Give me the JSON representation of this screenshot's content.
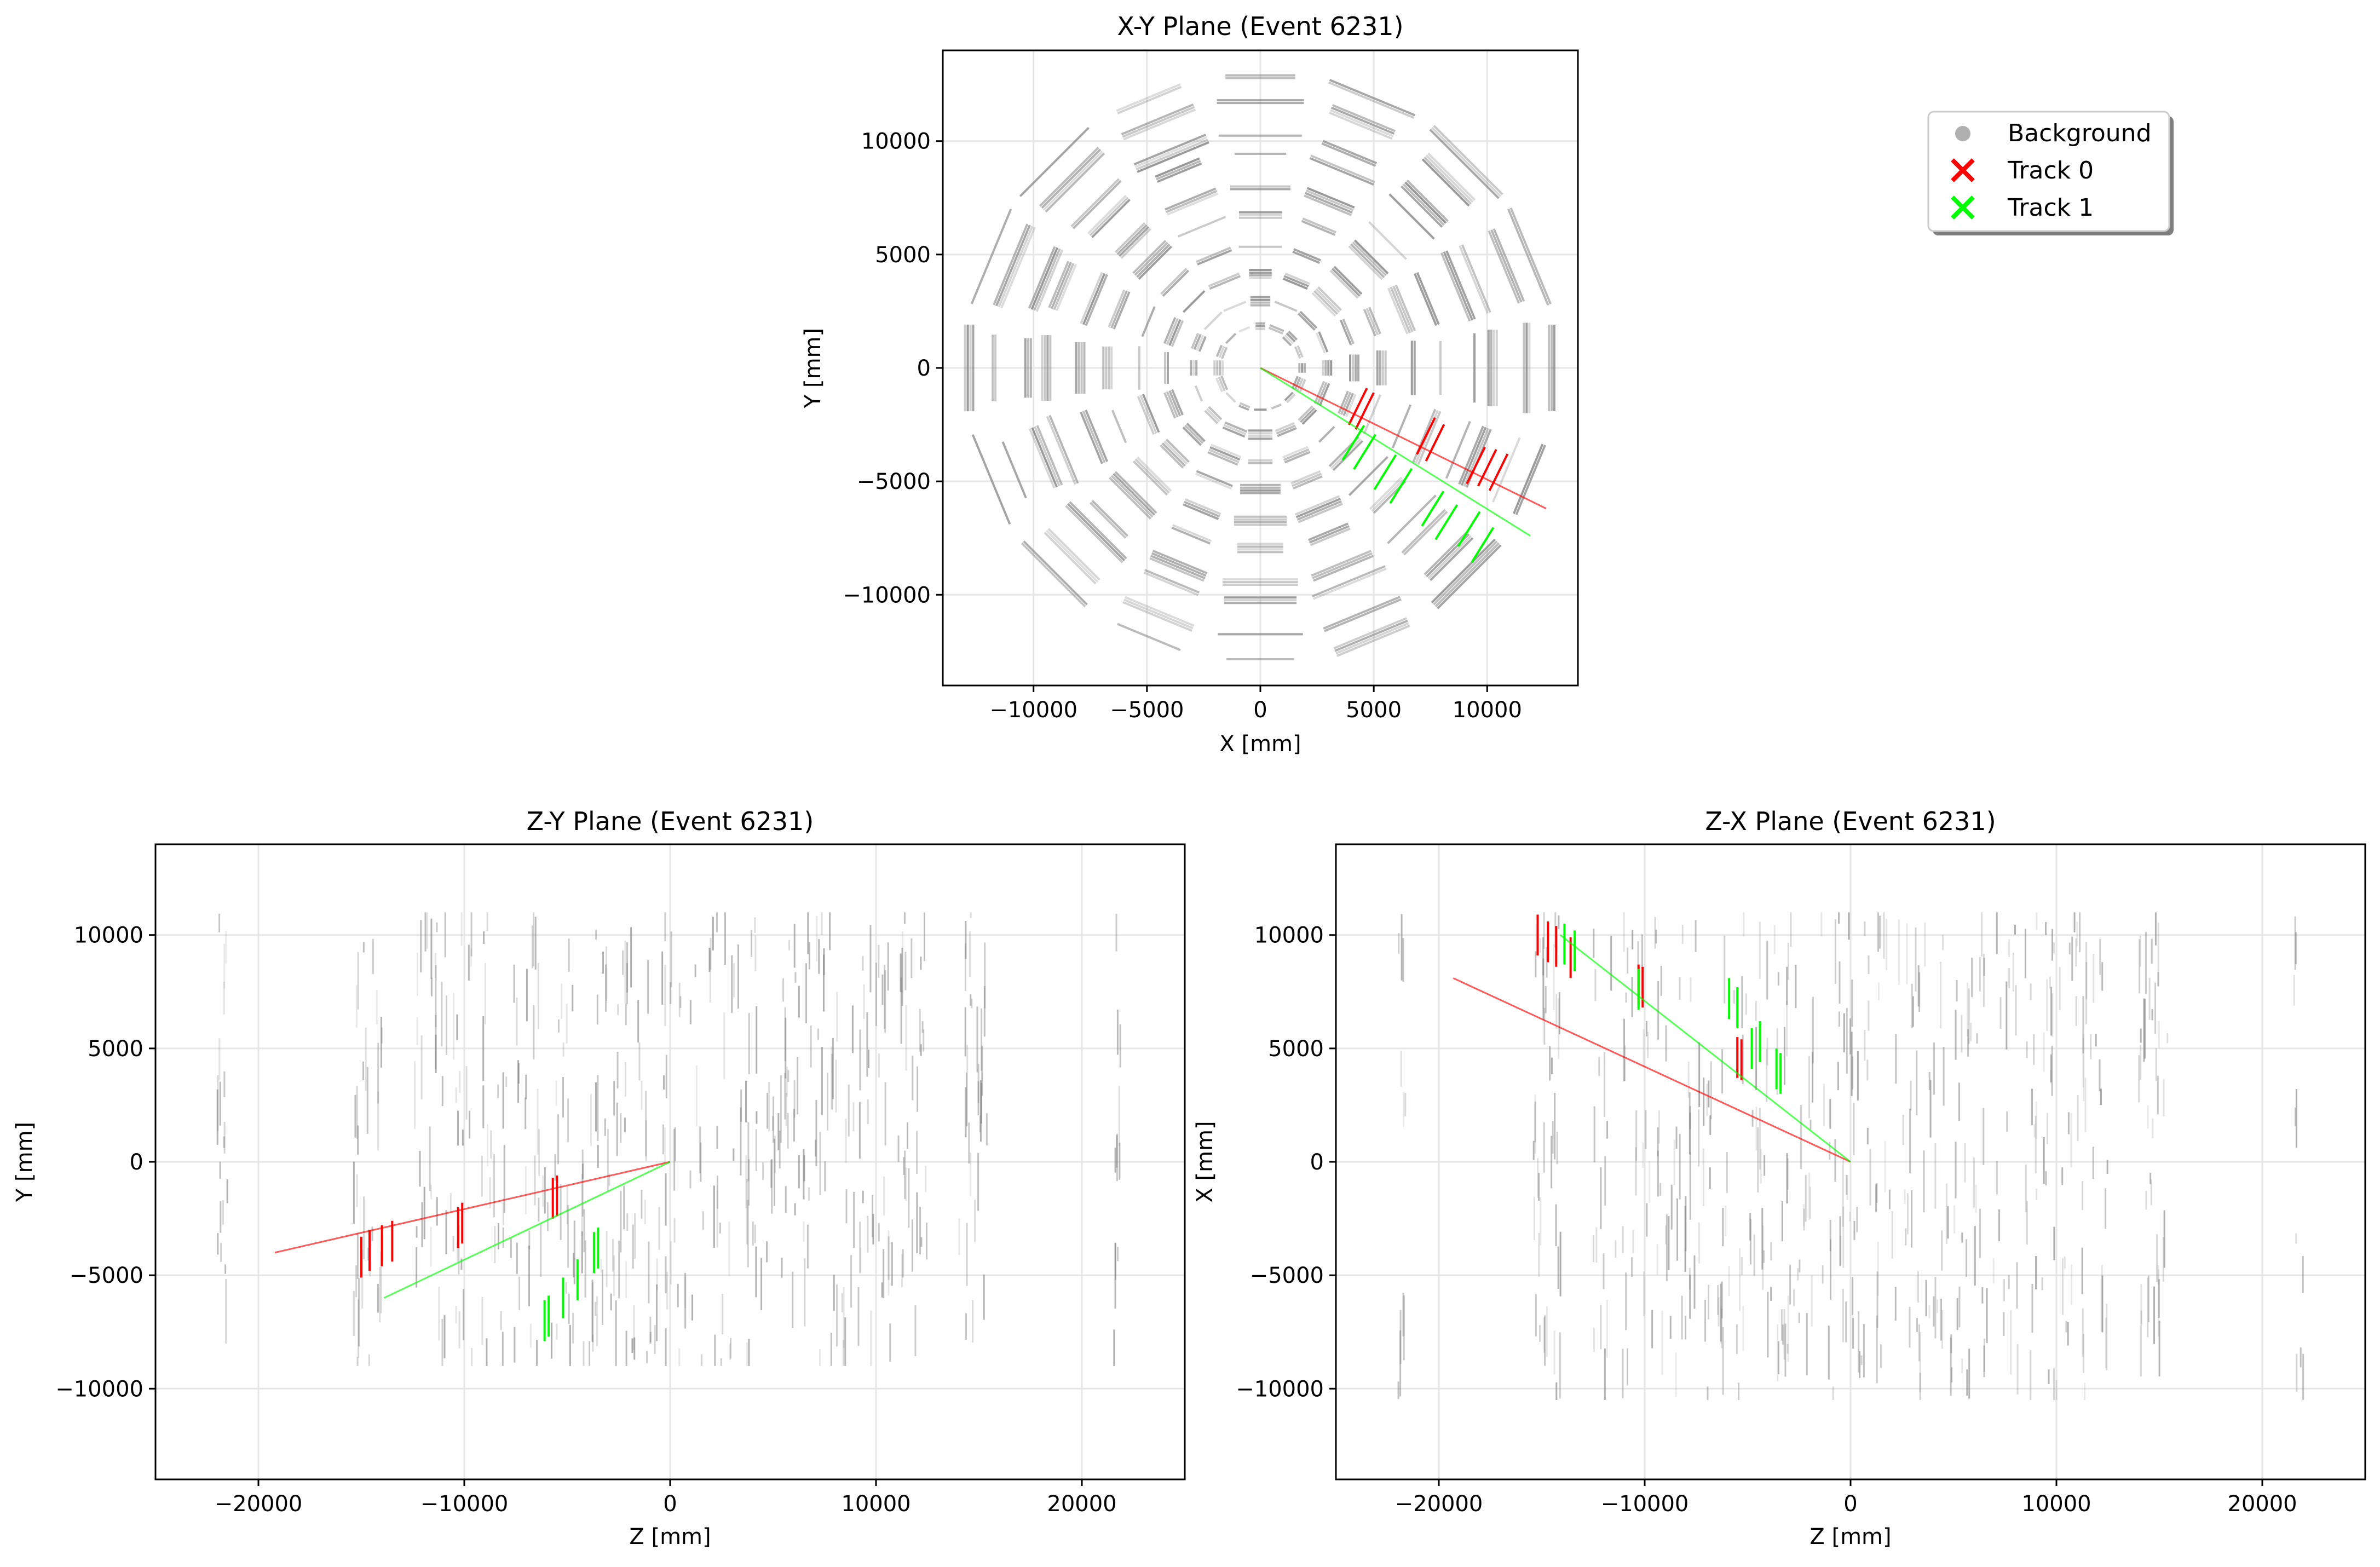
{
  "colors": {
    "background_hits": "#7f7f7f",
    "track_0": "#ff0000",
    "track_1": "#00ff00",
    "grid": "#e6e6e6"
  },
  "legend": {
    "placement": "upper-right of figure, outside plots",
    "items": [
      {
        "label": "Background",
        "marker": "circle",
        "color": "#b0b0b0"
      },
      {
        "label": "Track 0",
        "marker": "x",
        "color": "#ff0000"
      },
      {
        "label": "Track 1",
        "marker": "x",
        "color": "#00ff00"
      }
    ]
  },
  "chart_data": [
    {
      "type": "scatter",
      "title": "X-Y Plane (Event 6231)",
      "xlabel": "X [mm]",
      "ylabel": "Y [mm]",
      "xlim": [
        -14000,
        14000
      ],
      "ylim": [
        -14000,
        14000
      ],
      "xticks": [
        -10000,
        -5000,
        0,
        5000,
        10000
      ],
      "yticks": [
        -10000,
        -5000,
        0,
        5000,
        10000
      ],
      "xtick_labels": [
        "−10000",
        "−5000",
        "0",
        "5000",
        "10000"
      ],
      "ytick_labels": [
        "−10000",
        "−5000",
        "0",
        "5000",
        "10000"
      ],
      "grid": true,
      "series": [
        {
          "name": "Background",
          "kind": "segments",
          "ring_radii": [
            1900,
            3000,
            4200,
            5400,
            6800,
            8000,
            9500,
            10300,
            11800,
            12900
          ],
          "sectors": 16
        },
        {
          "name": "Track 0",
          "line": [
            [
              0,
              0
            ],
            [
              12600,
              -6200
            ]
          ],
          "hits": [
            [
              4300,
              -1700
            ],
            [
              4600,
              -1900
            ],
            [
              7300,
              -3000
            ],
            [
              7700,
              -3300
            ],
            [
              9500,
              -4300
            ],
            [
              10000,
              -4400
            ],
            [
              10500,
              -4600
            ]
          ]
        },
        {
          "name": "Track 1",
          "line": [
            [
              0,
              0
            ],
            [
              11900,
              -7400
            ]
          ],
          "hits": [
            [
              4100,
              -3300
            ],
            [
              4600,
              -3700
            ],
            [
              5500,
              -4600
            ],
            [
              6200,
              -5200
            ],
            [
              7600,
              -6200
            ],
            [
              8200,
              -6800
            ],
            [
              9200,
              -7100
            ],
            [
              9800,
              -7800
            ]
          ]
        }
      ]
    },
    {
      "type": "scatter",
      "title": "Z-Y Plane (Event 6231)",
      "xlabel": "Z [mm]",
      "ylabel": "Y [mm]",
      "xlim": [
        -25000,
        25000
      ],
      "ylim": [
        -14000,
        14000
      ],
      "xticks": [
        -20000,
        -10000,
        0,
        10000,
        20000
      ],
      "yticks": [
        -10000,
        -5000,
        0,
        5000,
        10000
      ],
      "xtick_labels": [
        "−20000",
        "−10000",
        "0",
        "10000",
        "20000"
      ],
      "ytick_labels": [
        "−10000",
        "−5000",
        "0",
        "5000",
        "10000"
      ],
      "grid": true,
      "series": [
        {
          "name": "Background",
          "kind": "vertical-segments",
          "z_range": [
            -22000,
            22000
          ],
          "y_range": [
            -9000,
            11000
          ]
        },
        {
          "name": "Track 0",
          "line": [
            [
              0,
              0
            ],
            [
              -19200,
              -4000
            ]
          ],
          "hits": [
            [
              -15000,
              -4200
            ],
            [
              -14600,
              -3900
            ],
            [
              -14000,
              -3700
            ],
            [
              -13500,
              -3500
            ],
            [
              -10300,
              -2900
            ],
            [
              -10100,
              -2700
            ],
            [
              -5700,
              -1600
            ],
            [
              -5500,
              -1500
            ]
          ]
        },
        {
          "name": "Track 1",
          "line": [
            [
              0,
              0
            ],
            [
              -13900,
              -6000
            ]
          ],
          "hits": [
            [
              -6100,
              -7000
            ],
            [
              -5900,
              -6800
            ],
            [
              -5200,
              -6000
            ],
            [
              -4500,
              -5200
            ],
            [
              -3700,
              -4000
            ],
            [
              -3500,
              -3800
            ]
          ]
        }
      ]
    },
    {
      "type": "scatter",
      "title": "Z-X Plane (Event 6231)",
      "xlabel": "Z [mm]",
      "ylabel": "X [mm]",
      "xlim": [
        -25000,
        25000
      ],
      "ylim": [
        -14000,
        14000
      ],
      "xticks": [
        -20000,
        -10000,
        0,
        10000,
        20000
      ],
      "yticks": [
        -10000,
        -5000,
        0,
        5000,
        10000
      ],
      "xtick_labels": [
        "−20000",
        "−10000",
        "0",
        "10000",
        "20000"
      ],
      "ytick_labels": [
        "−10000",
        "−5000",
        "0",
        "5000",
        "10000"
      ],
      "grid": true,
      "series": [
        {
          "name": "Background",
          "kind": "vertical-segments",
          "z_range": [
            -22000,
            22000
          ],
          "y_range": [
            -10500,
            11000
          ]
        },
        {
          "name": "Track 0",
          "line": [
            [
              0,
              0
            ],
            [
              -19300,
              8100
            ]
          ],
          "hits": [
            [
              -15200,
              10000
            ],
            [
              -14700,
              9700
            ],
            [
              -14300,
              9500
            ],
            [
              -13600,
              9000
            ],
            [
              -10300,
              7800
            ],
            [
              -10100,
              7700
            ],
            [
              -5500,
              4600
            ],
            [
              -5300,
              4500
            ]
          ]
        },
        {
          "name": "Track 1",
          "line": [
            [
              0,
              0
            ],
            [
              -14100,
              10000
            ]
          ],
          "hits": [
            [
              -13900,
              9600
            ],
            [
              -13400,
              9300
            ],
            [
              -10300,
              7600
            ],
            [
              -5900,
              7200
            ],
            [
              -5500,
              6800
            ],
            [
              -4800,
              5000
            ],
            [
              -4400,
              5300
            ],
            [
              -3600,
              4100
            ],
            [
              -3400,
              3900
            ]
          ]
        }
      ]
    }
  ]
}
